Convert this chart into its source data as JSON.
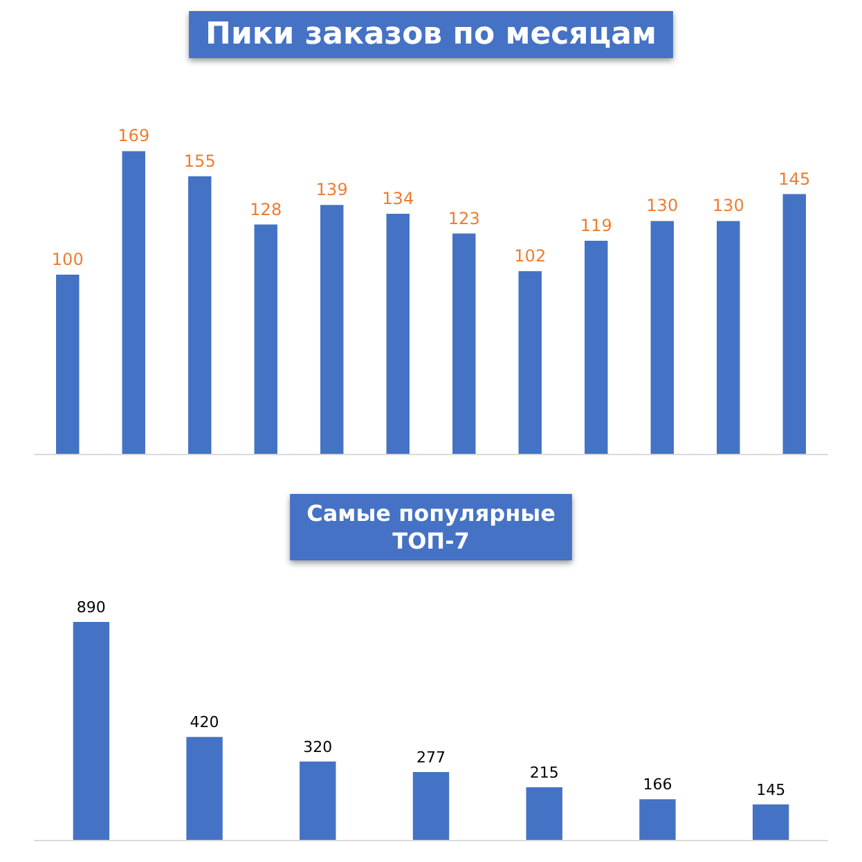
{
  "chart_data": [
    {
      "type": "bar",
      "title": "Пики заказов по месяцам",
      "categories": [
        null,
        null,
        null,
        null,
        null,
        null,
        null,
        null,
        null,
        null,
        null,
        null
      ],
      "values": [
        100,
        169,
        155,
        128,
        139,
        134,
        123,
        102,
        119,
        130,
        130,
        145
      ],
      "color": "#4472c4",
      "data_labels": true,
      "tick_labels": false
    },
    {
      "type": "bar",
      "title": "Самые популярные",
      "subtitle": "ТОП-7",
      "categories": [
        null,
        null,
        null,
        null,
        null,
        null,
        null
      ],
      "values": [
        890,
        420,
        320,
        277,
        215,
        166,
        145
      ],
      "color": "#4472c4",
      "data_labels": true,
      "tick_labels": false
    }
  ]
}
